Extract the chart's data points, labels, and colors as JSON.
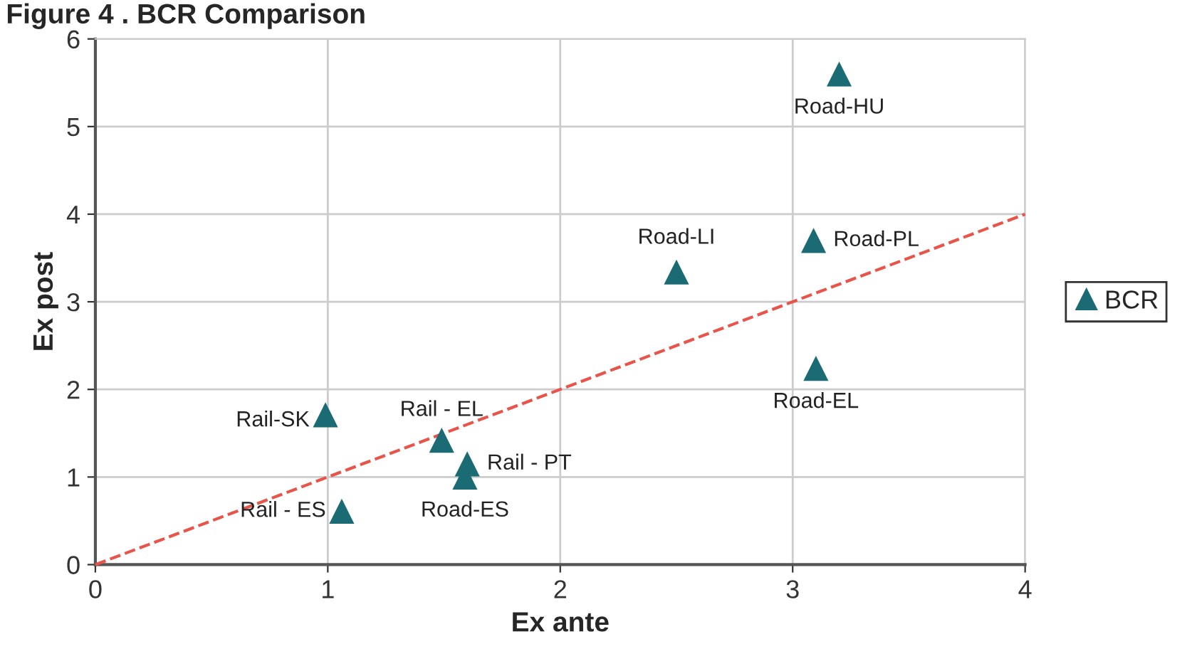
{
  "chart_data": {
    "type": "scatter",
    "title": "Figure 4 . BCR Comparison",
    "xlabel": "Ex ante",
    "ylabel": "Ex post",
    "xlim": [
      0,
      4
    ],
    "ylim": [
      0,
      6
    ],
    "xticks": [
      0,
      1,
      2,
      3,
      4
    ],
    "yticks": [
      0,
      1,
      2,
      3,
      4,
      5,
      6
    ],
    "grid": true,
    "legend": "right",
    "series": [
      {
        "name": "BCR",
        "marker": "triangle",
        "color": "#1a6b73",
        "x": [
          3.2,
          3.09,
          2.5,
          3.1,
          0.99,
          1.49,
          1.6,
          1.59,
          1.06
        ],
        "values": [
          5.6,
          3.7,
          3.34,
          2.24,
          1.71,
          1.42,
          1.15,
          1.0,
          0.61
        ]
      },
      {
        "type": "line",
        "marker": "none",
        "color": "#e8534a",
        "line_style": "dashed",
        "x": [
          0,
          4
        ],
        "values": [
          0,
          4
        ]
      }
    ],
    "annotations": [
      {
        "text": "Road-HU",
        "x": 3.2,
        "y": 5.6
      },
      {
        "text": "Road-PL",
        "x": 3.09,
        "y": 3.7
      },
      {
        "text": "Road-LI",
        "x": 2.5,
        "y": 3.34
      },
      {
        "text": "Road-EL",
        "x": 3.1,
        "y": 2.24
      },
      {
        "text": "Rail-SK",
        "x": 0.99,
        "y": 1.71
      },
      {
        "text": "Rail - EL",
        "x": 1.49,
        "y": 1.42
      },
      {
        "text": "Rail - PT",
        "x": 1.6,
        "y": 1.15
      },
      {
        "text": "Road-ES",
        "x": 1.59,
        "y": 1.0
      },
      {
        "text": "Rail - ES",
        "x": 1.06,
        "y": 0.61
      }
    ]
  }
}
